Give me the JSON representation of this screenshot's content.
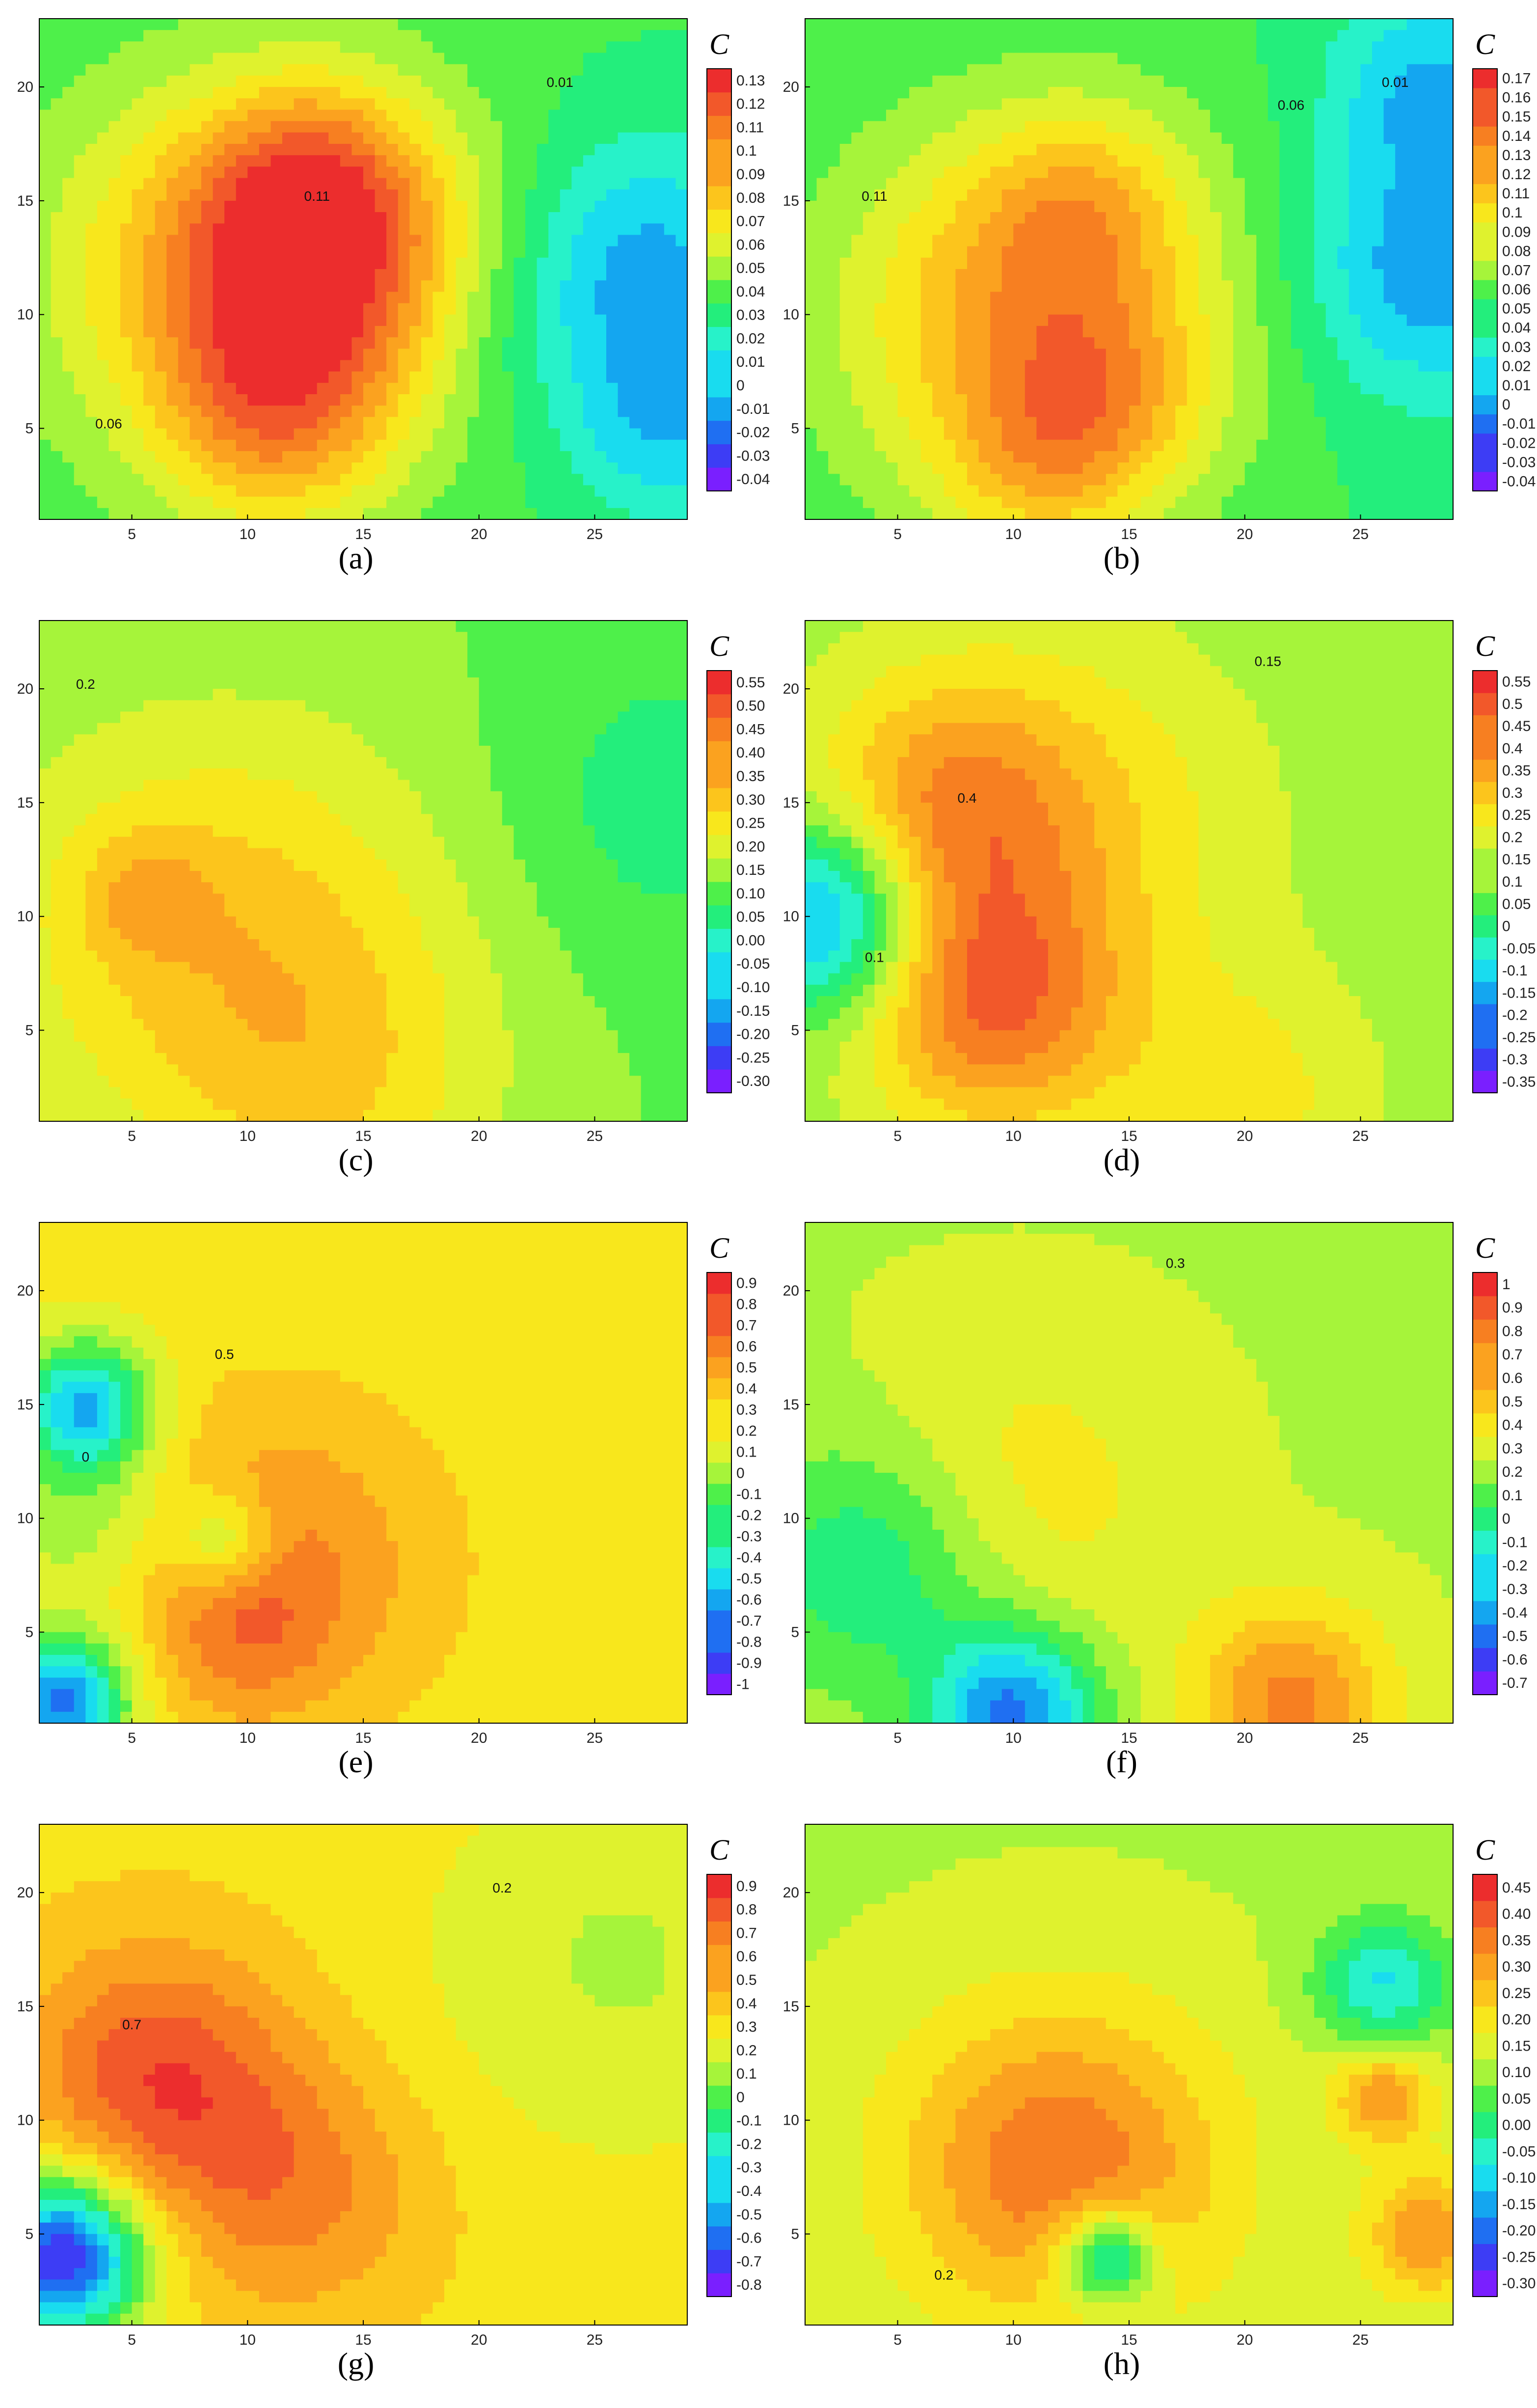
{
  "colors": {
    "scale": [
      "#7a1fff",
      "#3d3df5",
      "#1f6ff2",
      "#14a6f0",
      "#19dcef",
      "#27f2c9",
      "#23ee7c",
      "#4ef04a",
      "#a6f43a",
      "#dff22e",
      "#f8e71c",
      "#fcc51c",
      "#fba21f",
      "#f77f21",
      "#f2582a",
      "#ec2d2d"
    ],
    "contour": "#000000",
    "frame": "#000000"
  },
  "chart_data": [
    {
      "panel": "a",
      "type": "heatmap",
      "xlim": [
        1,
        29
      ],
      "ylim": [
        1,
        23
      ],
      "xticks": [
        5,
        10,
        15,
        20,
        25
      ],
      "yticks": [
        5,
        10,
        15,
        20
      ],
      "colorbar": {
        "title": "C",
        "ticks": [
          "-0.04",
          "-0.03",
          "-0.02",
          "-0.01",
          "0",
          "0.01",
          "0.02",
          "0.03",
          "0.04",
          "0.05",
          "0.06",
          "0.07",
          "0.08",
          "0.09",
          "0.1",
          "0.11",
          "0.12",
          "0.13"
        ],
        "min": -0.045,
        "max": 0.135
      },
      "bg": 0.035,
      "field": [
        {
          "x": 13,
          "y": 12,
          "s": 5,
          "v": 0.08
        },
        {
          "x": 11,
          "y": 5,
          "s": 3.5,
          "v": 0.04
        },
        {
          "x": 13,
          "y": 16,
          "s": 3,
          "v": 0.03
        },
        {
          "x": 8,
          "y": 12,
          "s": 6,
          "v": 0.03
        },
        {
          "x": 27,
          "y": 12,
          "s": 4,
          "v": -0.04
        },
        {
          "x": 28,
          "y": 5,
          "s": 3,
          "v": -0.03
        },
        {
          "x": 20,
          "y": 9,
          "s": 3,
          "v": -0.01
        }
      ],
      "contours": [
        {
          "value": 0.06,
          "label": "0.06",
          "lx": 4,
          "ly": 5
        },
        {
          "value": 0.11,
          "label": "0.11",
          "lx": 13,
          "ly": 15
        },
        {
          "value": 0.01,
          "label": "0.01",
          "lx": 23.5,
          "ly": 20
        }
      ]
    },
    {
      "panel": "b",
      "type": "heatmap",
      "xlim": [
        1,
        29
      ],
      "ylim": [
        1,
        23
      ],
      "xticks": [
        5,
        10,
        15,
        20,
        25
      ],
      "yticks": [
        5,
        10,
        15,
        20
      ],
      "colorbar": {
        "title": "C",
        "ticks": [
          "-0.04",
          "-0.03",
          "-0.02",
          "-0.01",
          "0",
          "0.01",
          "0.02",
          "0.03",
          "0.04",
          "0.05",
          "0.06",
          "0.07",
          "0.08",
          "0.09",
          "0.1",
          "0.11",
          "0.12",
          "0.13",
          "0.14",
          "0.15",
          "0.16",
          "0.17"
        ],
        "min": -0.045,
        "max": 0.175
      },
      "bg": 0.05,
      "field": [
        {
          "x": 11,
          "y": 10,
          "s": 6,
          "v": 0.08
        },
        {
          "x": 13,
          "y": 15,
          "s": 3,
          "v": 0.03
        },
        {
          "x": 14,
          "y": 6,
          "s": 3,
          "v": 0.03
        },
        {
          "x": 11,
          "y": 3,
          "s": 3,
          "v": 0.03
        },
        {
          "x": 28,
          "y": 12,
          "s": 4,
          "v": -0.05
        },
        {
          "x": 28,
          "y": 20,
          "s": 3,
          "v": -0.04
        }
      ],
      "contours": [
        {
          "value": 0.11,
          "label": "0.11",
          "lx": 4,
          "ly": 15
        },
        {
          "value": 0.06,
          "label": "0.06",
          "lx": 22,
          "ly": 19
        },
        {
          "value": 0.01,
          "label": "0.01",
          "lx": 26.5,
          "ly": 20
        }
      ]
    },
    {
      "panel": "c",
      "type": "heatmap",
      "xlim": [
        1,
        29
      ],
      "ylim": [
        1,
        23
      ],
      "xticks": [
        5,
        10,
        15,
        20,
        25
      ],
      "yticks": [
        5,
        10,
        15,
        20
      ],
      "colorbar": {
        "title": "C",
        "ticks": [
          "-0.30",
          "-0.25",
          "-0.20",
          "-0.15",
          "-0.10",
          "-0.05",
          "0.00",
          "0.05",
          "0.10",
          "0.15",
          "0.20",
          "0.25",
          "0.30",
          "0.35",
          "0.40",
          "0.45",
          "0.50",
          "0.55"
        ],
        "min": -0.325,
        "max": 0.575
      },
      "bg": 0.12,
      "field": [
        {
          "x": 9,
          "y": 9,
          "s": 7,
          "v": 0.2
        },
        {
          "x": 5.5,
          "y": 11,
          "s": 2,
          "v": 0.1
        },
        {
          "x": 14,
          "y": 2,
          "s": 5,
          "v": 0.1
        },
        {
          "x": 28,
          "y": 15,
          "s": 5,
          "v": -0.08
        }
      ],
      "contours": [
        {
          "value": 0.2,
          "label": "0.2",
          "lx": 3,
          "ly": 20
        }
      ]
    },
    {
      "panel": "d",
      "type": "heatmap",
      "xlim": [
        1,
        29
      ],
      "ylim": [
        1,
        23
      ],
      "xticks": [
        5,
        10,
        15,
        20,
        25
      ],
      "yticks": [
        5,
        10,
        15,
        20
      ],
      "colorbar": {
        "title": "C",
        "ticks": [
          "-0.35",
          "-0.3",
          "-0.25",
          "-0.2",
          "-0.15",
          "-0.1",
          "-0.05",
          "0",
          "0.05",
          "0.1",
          "0.15",
          "0.2",
          "0.25",
          "0.3",
          "0.35",
          "0.4",
          "0.45",
          "0.5",
          "0.55"
        ],
        "min": -0.375,
        "max": 0.575
      },
      "bg": 0.12,
      "field": [
        {
          "x": 9,
          "y": 6,
          "s": 4,
          "v": 0.3
        },
        {
          "x": 7,
          "y": 15,
          "s": 4,
          "v": 0.2
        },
        {
          "x": 12,
          "y": 14,
          "s": 6,
          "v": 0.15
        },
        {
          "x": 2,
          "y": 10,
          "s": 3,
          "v": -0.35
        },
        {
          "x": 20,
          "y": 2,
          "s": 4,
          "v": 0.12
        }
      ],
      "contours": [
        {
          "value": 0.4,
          "label": "0.4",
          "lx": 8,
          "ly": 15
        },
        {
          "value": 0.15,
          "label": "0.15",
          "lx": 21,
          "ly": 21
        },
        {
          "value": 0.1,
          "label": "0.1",
          "lx": 4,
          "ly": 8
        }
      ]
    },
    {
      "panel": "e",
      "type": "heatmap",
      "xlim": [
        1,
        29
      ],
      "ylim": [
        1,
        23
      ],
      "xticks": [
        5,
        10,
        15,
        20,
        25
      ],
      "yticks": [
        5,
        10,
        15,
        20
      ],
      "colorbar": {
        "title": "C",
        "ticks": [
          "-1",
          "-0.9",
          "-0.8",
          "-0.7",
          "-0.6",
          "-0.5",
          "-0.4",
          "-0.3",
          "-0.2",
          "-0.1",
          "0",
          "0.1",
          "0.2",
          "0.3",
          "0.4",
          "0.5",
          "0.6",
          "0.7",
          "0.8",
          "0.9"
        ],
        "min": -1.05,
        "max": 0.95
      },
      "bg": 0.25,
      "field": [
        {
          "x": 11,
          "y": 8,
          "s": 5,
          "v": 0.35
        },
        {
          "x": 10,
          "y": 5,
          "s": 2.5,
          "v": 0.2
        },
        {
          "x": 3,
          "y": 15,
          "s": 2,
          "v": -0.8
        },
        {
          "x": 9,
          "y": 9,
          "s": 1.5,
          "v": -0.4
        },
        {
          "x": 2,
          "y": 2,
          "s": 2,
          "v": -1.0
        },
        {
          "x": 3,
          "y": 10,
          "s": 3,
          "v": -0.3
        }
      ],
      "contours": [
        {
          "value": 0.5,
          "label": "0.5",
          "lx": 9,
          "ly": 17
        },
        {
          "value": 0,
          "label": "0",
          "lx": 3,
          "ly": 12.5
        }
      ]
    },
    {
      "panel": "f",
      "type": "heatmap",
      "xlim": [
        1,
        29
      ],
      "ylim": [
        1,
        23
      ],
      "xticks": [
        5,
        10,
        15,
        20,
        25
      ],
      "yticks": [
        5,
        10,
        15,
        20
      ],
      "colorbar": {
        "title": "C",
        "ticks": [
          "-0.7",
          "-0.6",
          "-0.5",
          "-0.4",
          "-0.3",
          "-0.2",
          "-0.1",
          "0",
          "0.1",
          "0.2",
          "0.3",
          "0.4",
          "0.5",
          "0.6",
          "0.7",
          "0.8",
          "0.9",
          "1"
        ],
        "min": -0.75,
        "max": 1.05
      },
      "bg": 0.25,
      "field": [
        {
          "x": 10,
          "y": 11,
          "s": 5,
          "v": 0.2
        },
        {
          "x": 22,
          "y": 2,
          "s": 3,
          "v": 0.5
        },
        {
          "x": 4,
          "y": 8,
          "s": 4,
          "v": -0.35
        },
        {
          "x": 10,
          "y": 1.5,
          "s": 2.5,
          "v": -0.7
        }
      ],
      "contours": [
        {
          "value": 0.3,
          "label": "0.3",
          "lx": 17,
          "ly": 21
        }
      ]
    },
    {
      "panel": "g",
      "type": "heatmap",
      "xlim": [
        1,
        29
      ],
      "ylim": [
        1,
        23
      ],
      "xticks": [
        5,
        10,
        15,
        20,
        25
      ],
      "yticks": [
        5,
        10,
        15,
        20
      ],
      "colorbar": {
        "title": "C",
        "ticks": [
          "-0.8",
          "-0.7",
          "-0.6",
          "-0.5",
          "-0.4",
          "-0.3",
          "-0.2",
          "-0.1",
          "0",
          "0.1",
          "0.2",
          "0.3",
          "0.4",
          "0.5",
          "0.6",
          "0.7",
          "0.8",
          "0.9"
        ],
        "min": -0.85,
        "max": 0.95
      },
      "bg": 0.35,
      "field": [
        {
          "x": 6,
          "y": 12,
          "s": 4,
          "v": 0.45
        },
        {
          "x": 12,
          "y": 7,
          "s": 4,
          "v": 0.3
        },
        {
          "x": 2,
          "y": 4,
          "s": 2.5,
          "v": -1.1
        },
        {
          "x": 26,
          "y": 17,
          "s": 6,
          "v": -0.2
        }
      ],
      "contours": [
        {
          "value": 0.7,
          "label": "0.7",
          "lx": 5,
          "ly": 14
        },
        {
          "value": 0.2,
          "label": "0.2",
          "lx": 21,
          "ly": 20
        }
      ]
    },
    {
      "panel": "h",
      "type": "heatmap",
      "xlim": [
        1,
        29
      ],
      "ylim": [
        1,
        23
      ],
      "xticks": [
        5,
        10,
        15,
        20,
        25
      ],
      "yticks": [
        5,
        10,
        15,
        20
      ],
      "colorbar": {
        "title": "C",
        "ticks": [
          "-0.30",
          "-0.25",
          "-0.20",
          "-0.15",
          "-0.10",
          "-0.05",
          "0.00",
          "0.05",
          "0.10",
          "0.15",
          "0.20",
          "0.25",
          "0.30",
          "0.35",
          "0.40",
          "0.45"
        ],
        "min": -0.325,
        "max": 0.475
      },
      "bg": 0.12,
      "field": [
        {
          "x": 12,
          "y": 8,
          "s": 5,
          "v": 0.25
        },
        {
          "x": 14,
          "y": 4,
          "s": 1.5,
          "v": -0.3
        },
        {
          "x": 26,
          "y": 16,
          "s": 2,
          "v": -0.2
        },
        {
          "x": 26,
          "y": 11,
          "s": 1.5,
          "v": 0.2
        },
        {
          "x": 28,
          "y": 5,
          "s": 2,
          "v": 0.2
        }
      ],
      "contours": [
        {
          "value": 0.2,
          "label": "0.2",
          "lx": 7,
          "ly": 3
        }
      ]
    }
  ],
  "captions": [
    "(a)",
    "(b)",
    "(c)",
    "(d)",
    "(e)",
    "(f)",
    "(g)",
    "(h)"
  ]
}
